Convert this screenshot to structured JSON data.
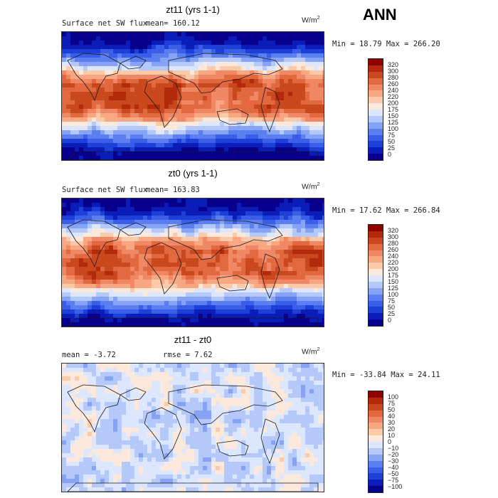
{
  "header": {
    "season": "ANN"
  },
  "colors": {
    "model_levels": [
      "#08008c",
      "#0a1db8",
      "#1d40d8",
      "#3a5ee8",
      "#5b7ff0",
      "#86a3f5",
      "#b4c8fa",
      "#dce6fd",
      "#fde8dc",
      "#fbcaa8",
      "#f7a882",
      "#f08865",
      "#e2683f",
      "#c9481e",
      "#b22a0b",
      "#900000"
    ],
    "diff_levels": [
      "#08008c",
      "#0a1db8",
      "#1d40d8",
      "#3a5ee8",
      "#5b7ff0",
      "#86a3f5",
      "#b4c8fa",
      "#dce6fd",
      "#fde8dc",
      "#fbcaa8",
      "#f7a882",
      "#f08865",
      "#e2683f",
      "#c9481e",
      "#b22a0b",
      "#900000"
    ],
    "coastline": "#1a1a1a"
  },
  "chart_data": [
    {
      "type": "heatmap",
      "title": "zt11 (yrs 1-1)",
      "variable": "Surface net SW flux",
      "mean_label": "mean=",
      "mean": "160.12",
      "units_base": "W/m",
      "units_exp": "2",
      "min_label": "Min =",
      "min": "18.79",
      "max_label": "Max =",
      "max": "266.20",
      "colorbar_levels": [
        "320",
        "300",
        "280",
        "260",
        "240",
        "220",
        "200",
        "175",
        "150",
        "125",
        "100",
        "75",
        "50",
        "25",
        "0"
      ]
    },
    {
      "type": "heatmap",
      "title": "zt0 (yrs 1-1)",
      "variable": "Surface net SW flux",
      "mean_label": "mean=",
      "mean": "163.83",
      "units_base": "W/m",
      "units_exp": "2",
      "min_label": "Min =",
      "min": "17.62",
      "max_label": "Max =",
      "max": "266.84",
      "colorbar_levels": [
        "320",
        "300",
        "280",
        "260",
        "240",
        "220",
        "200",
        "175",
        "150",
        "125",
        "100",
        "75",
        "50",
        "25",
        "0"
      ]
    },
    {
      "type": "heatmap",
      "title": "zt11 - zt0",
      "mean_label": "mean =",
      "mean": "-3.72",
      "rmse_label": "rmse =",
      "rmse": "7.62",
      "units_base": "W/m",
      "units_exp": "2",
      "min_label": "Min =",
      "min": "-33.84",
      "max_label": "Max =",
      "max": "24.11",
      "colorbar_levels": [
        "100",
        "75",
        "50",
        "40",
        "30",
        "20",
        "10",
        "0",
        "−10",
        "−20",
        "−30",
        "−40",
        "−50",
        "−75",
        "−100"
      ]
    }
  ]
}
